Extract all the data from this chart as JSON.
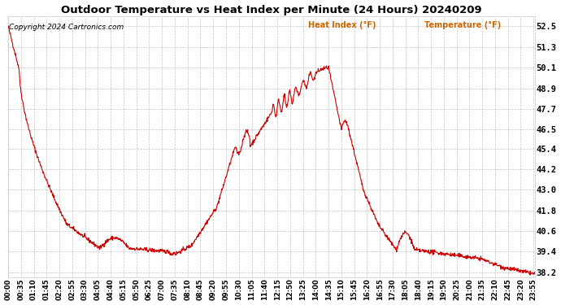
{
  "title": "Outdoor Temperature vs Heat Index per Minute (24 Hours) 20240209",
  "copyright": "Copyright 2024 Cartronics.com",
  "legend_labels": [
    "Heat Index (°F)",
    "Temperature (°F)"
  ],
  "line_color": "#cc0000",
  "bg_color": "#ffffff",
  "plot_bg_color": "#ffffff",
  "text_color": "#000000",
  "grid_color": "#aaaaaa",
  "title_color": "#000000",
  "copyright_color": "#000000",
  "legend_color": "#cc6600",
  "yticks": [
    38.2,
    39.4,
    40.6,
    41.8,
    43.0,
    44.2,
    45.4,
    46.5,
    47.7,
    48.9,
    50.1,
    51.3,
    52.5
  ],
  "ylim": [
    37.9,
    53.1
  ],
  "n_minutes": 1440
}
